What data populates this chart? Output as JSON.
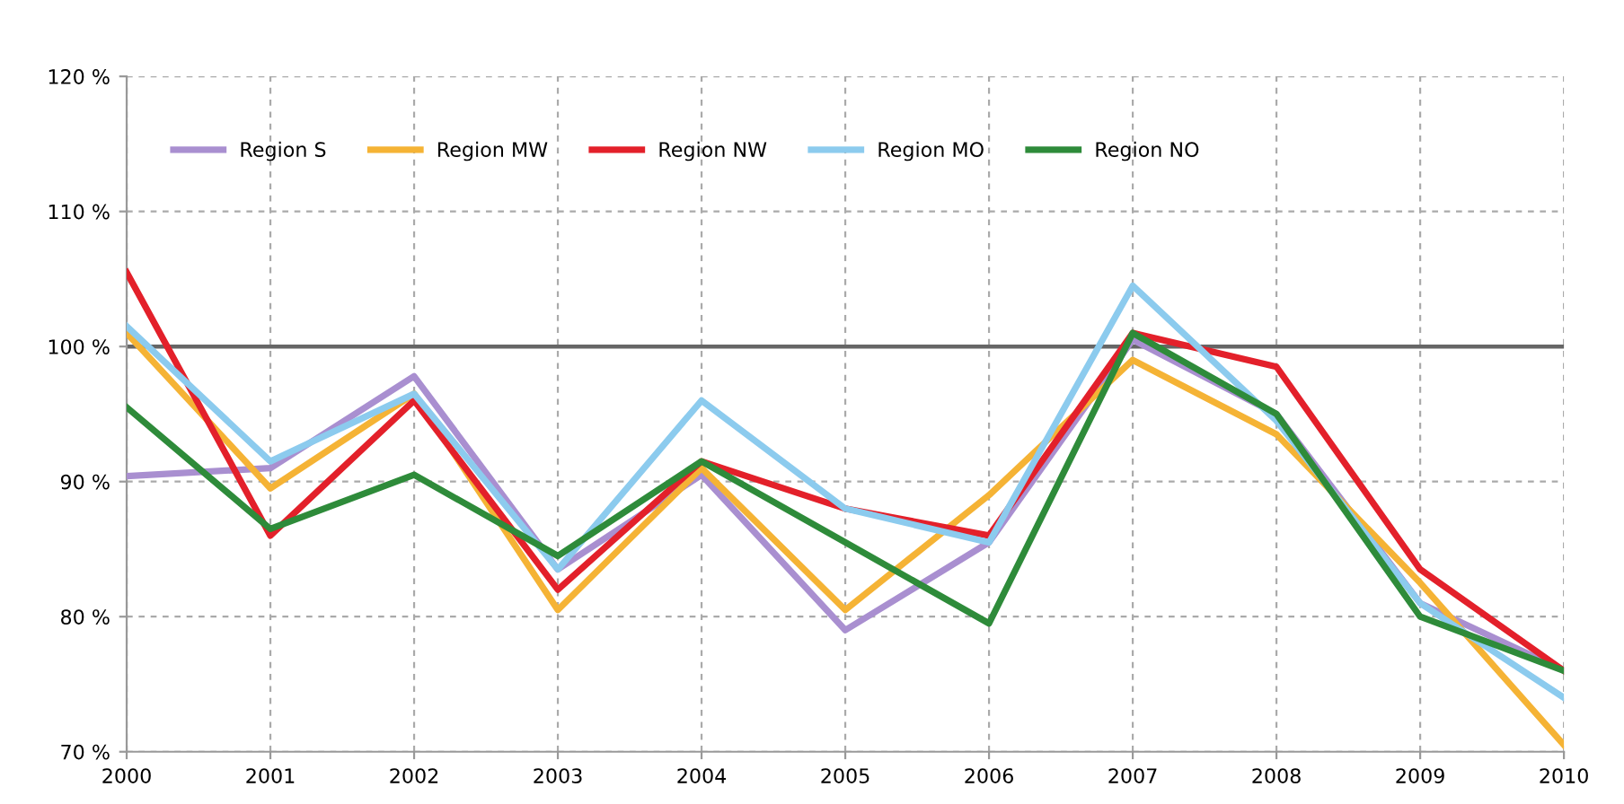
{
  "chart_data": {
    "type": "line",
    "x": [
      2000,
      2001,
      2002,
      2003,
      2004,
      2005,
      2006,
      2007,
      2008,
      2009,
      2010
    ],
    "series": [
      {
        "name": "Region S",
        "color": "#a98fd0",
        "values": [
          90.4,
          91,
          97.8,
          83.5,
          90.5,
          79,
          85.5,
          100.5,
          95,
          81,
          76
        ]
      },
      {
        "name": "Region MW",
        "color": "#f5b335",
        "values": [
          101,
          89.5,
          96.5,
          80.5,
          91,
          80.5,
          89,
          99,
          93.5,
          82.5,
          70.5
        ]
      },
      {
        "name": "Region NW",
        "color": "#e3202a",
        "values": [
          105.5,
          86,
          96,
          82,
          91.5,
          88,
          86,
          101,
          98.5,
          83.5,
          76
        ]
      },
      {
        "name": "Region MO",
        "color": "#8ccbee",
        "values": [
          101.5,
          91.5,
          96.5,
          83.5,
          96,
          88,
          85.5,
          104.5,
          94.5,
          81,
          74
        ]
      },
      {
        "name": "Region NO",
        "color": "#2e8b3a",
        "values": [
          95.5,
          86.5,
          90.5,
          84.5,
          91.5,
          85.5,
          79.5,
          101,
          95,
          80,
          76
        ]
      }
    ],
    "xlim": [
      2000,
      2010
    ],
    "xticks": [
      2000,
      2001,
      2002,
      2003,
      2004,
      2005,
      2006,
      2007,
      2008,
      2009,
      2010
    ],
    "ylim": [
      70,
      120
    ],
    "yticks": [
      {
        "value": 70,
        "label": "70 %"
      },
      {
        "value": 80,
        "label": "80 %"
      },
      {
        "value": 90,
        "label": "90 %"
      },
      {
        "value": 100,
        "label": "100 %"
      },
      {
        "value": 110,
        "label": "110 %"
      },
      {
        "value": 120,
        "label": "120 %"
      }
    ],
    "ref_lines": [
      {
        "axis": "y",
        "value": 100,
        "color": "#666666"
      }
    ],
    "grid": true,
    "legend": "top left",
    "marker": "none",
    "line_style": "solid"
  }
}
